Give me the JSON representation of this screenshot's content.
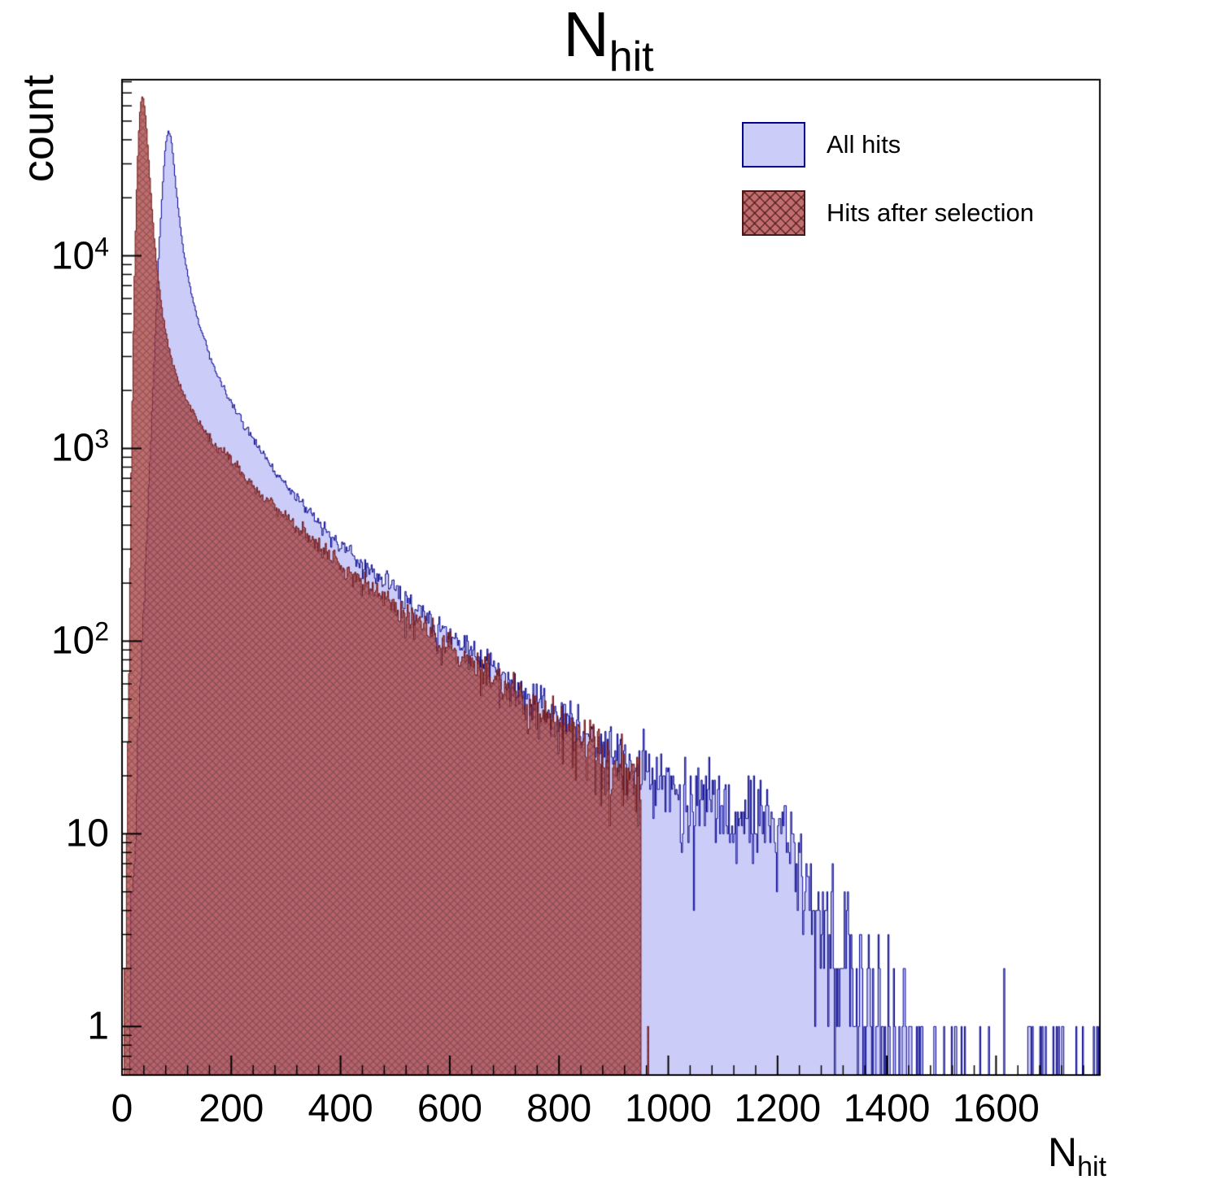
{
  "title": {
    "text": "N",
    "subscript": "hit"
  },
  "y_axis": {
    "label": "count",
    "ticks": [
      {
        "label": "1",
        "value": 1,
        "exp": ""
      },
      {
        "label": "10",
        "value": 10,
        "exp": ""
      },
      {
        "label": "10",
        "value": 100,
        "exp": "2"
      },
      {
        "label": "10",
        "value": 1000,
        "exp": "3"
      },
      {
        "label": "10",
        "value": 10000,
        "exp": "4"
      }
    ]
  },
  "x_axis": {
    "label": "N",
    "label_subscript": "hit",
    "minor_step": 40,
    "ticks": [
      {
        "label": "0",
        "value": 0
      },
      {
        "label": "200",
        "value": 200
      },
      {
        "label": "400",
        "value": 400
      },
      {
        "label": "600",
        "value": 600
      },
      {
        "label": "800",
        "value": 800
      },
      {
        "label": "1000",
        "value": 1000
      },
      {
        "label": "1200",
        "value": 1200
      },
      {
        "label": "1400",
        "value": 1400
      },
      {
        "label": "1600",
        "value": 1600
      }
    ]
  },
  "legend": {
    "entries": [
      {
        "label": "All hits"
      },
      {
        "label": "Hits after selection"
      }
    ]
  },
  "chart_data": {
    "type": "histogram",
    "title": "N_hit",
    "xlabel": "N_hit",
    "ylabel": "count",
    "yscale": "log",
    "xlim": [
      0,
      1790
    ],
    "ylim": [
      0.56,
      82000
    ],
    "bin_width": 2,
    "noise_seed": 13,
    "series": [
      {
        "name": "All hits",
        "fill": "#ccccf8",
        "edge": "#00008c",
        "hatch": false,
        "cutoff": 1790,
        "peak": {
          "x": 85,
          "count": 45000
        },
        "anchors": [
          [
            2,
            0.2
          ],
          [
            8,
            0.8
          ],
          [
            14,
            2
          ],
          [
            20,
            6
          ],
          [
            26,
            18
          ],
          [
            32,
            45
          ],
          [
            38,
            110
          ],
          [
            44,
            280
          ],
          [
            50,
            700
          ],
          [
            56,
            1800
          ],
          [
            62,
            4500
          ],
          [
            68,
            11000
          ],
          [
            74,
            22000
          ],
          [
            80,
            38000
          ],
          [
            85,
            45000
          ],
          [
            90,
            41000
          ],
          [
            95,
            30000
          ],
          [
            100,
            21000
          ],
          [
            110,
            12000
          ],
          [
            120,
            8000
          ],
          [
            130,
            5900
          ],
          [
            140,
            4600
          ],
          [
            155,
            3400
          ],
          [
            170,
            2600
          ],
          [
            185,
            2100
          ],
          [
            200,
            1750
          ],
          [
            220,
            1400
          ],
          [
            240,
            1120
          ],
          [
            260,
            920
          ],
          [
            280,
            770
          ],
          [
            300,
            650
          ],
          [
            330,
            510
          ],
          [
            360,
            410
          ],
          [
            390,
            340
          ],
          [
            420,
            285
          ],
          [
            450,
            240
          ],
          [
            480,
            205
          ],
          [
            510,
            175
          ],
          [
            540,
            150
          ],
          [
            570,
            128
          ],
          [
            600,
            110
          ],
          [
            640,
            90
          ],
          [
            680,
            74
          ],
          [
            720,
            61
          ],
          [
            760,
            50
          ],
          [
            800,
            41
          ],
          [
            840,
            34
          ],
          [
            880,
            28
          ],
          [
            920,
            24
          ],
          [
            960,
            20
          ],
          [
            1000,
            17
          ],
          [
            1050,
            15
          ],
          [
            1100,
            13
          ],
          [
            1150,
            12
          ],
          [
            1200,
            11
          ],
          [
            1230,
            9
          ],
          [
            1250,
            6
          ],
          [
            1270,
            4
          ],
          [
            1300,
            2.6
          ],
          [
            1330,
            1.8
          ],
          [
            1360,
            1.2
          ],
          [
            1400,
            0.8
          ],
          [
            1440,
            0.55
          ],
          [
            1480,
            0.4
          ],
          [
            1520,
            0.33
          ],
          [
            1560,
            0.28
          ],
          [
            1600,
            0.25
          ],
          [
            1650,
            0.22
          ],
          [
            1700,
            0.2
          ],
          [
            1750,
            0.18
          ],
          [
            1790,
            0.16
          ]
        ],
        "extra_bins": []
      },
      {
        "name": "Hits after selection",
        "fill": "#b24848",
        "fill_alpha": 0.8,
        "edge": "#701818",
        "hatch": true,
        "hatch_color": "#4a1a1a",
        "cutoff": 950,
        "peak": {
          "x": 38,
          "count": 68000
        },
        "anchors": [
          [
            2,
            0.3
          ],
          [
            6,
            1.5
          ],
          [
            10,
            15
          ],
          [
            14,
            150
          ],
          [
            18,
            1200
          ],
          [
            22,
            6000
          ],
          [
            26,
            18000
          ],
          [
            30,
            40000
          ],
          [
            34,
            62000
          ],
          [
            38,
            68000
          ],
          [
            42,
            58000
          ],
          [
            46,
            42000
          ],
          [
            50,
            28000
          ],
          [
            55,
            17500
          ],
          [
            60,
            11500
          ],
          [
            66,
            7800
          ],
          [
            72,
            5600
          ],
          [
            80,
            4000
          ],
          [
            88,
            3100
          ],
          [
            96,
            2550
          ],
          [
            105,
            2150
          ],
          [
            115,
            1850
          ],
          [
            125,
            1620
          ],
          [
            140,
            1380
          ],
          [
            155,
            1200
          ],
          [
            170,
            1060
          ],
          [
            185,
            950
          ],
          [
            200,
            860
          ],
          [
            220,
            740
          ],
          [
            240,
            645
          ],
          [
            260,
            565
          ],
          [
            280,
            500
          ],
          [
            300,
            445
          ],
          [
            330,
            375
          ],
          [
            360,
            315
          ],
          [
            390,
            268
          ],
          [
            420,
            228
          ],
          [
            450,
            195
          ],
          [
            480,
            167
          ],
          [
            510,
            143
          ],
          [
            540,
            123
          ],
          [
            570,
            106
          ],
          [
            600,
            92
          ],
          [
            640,
            76
          ],
          [
            680,
            63
          ],
          [
            720,
            52
          ],
          [
            760,
            43
          ],
          [
            800,
            36
          ],
          [
            840,
            30
          ],
          [
            880,
            25
          ],
          [
            910,
            22
          ],
          [
            935,
            20
          ],
          [
            950,
            19
          ]
        ],
        "extra_bins": [
          {
            "x": 962,
            "count": 1
          }
        ]
      }
    ]
  }
}
